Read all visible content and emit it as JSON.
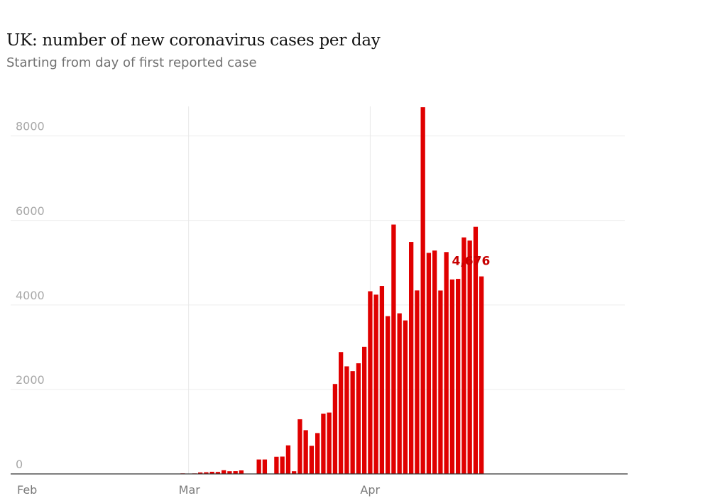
{
  "chart_data": {
    "type": "bar",
    "title": "UK: number of new coronavirus cases per day",
    "subtitle": "Starting from day of first reported case",
    "xlabel": "",
    "ylabel": "",
    "ylim": [
      0,
      8700
    ],
    "y_ticks": [
      "0",
      "2000",
      "4000",
      "6000",
      "8000"
    ],
    "x_ticks": [
      "Feb",
      "Mar",
      "Apr"
    ],
    "bar_color": "#e00000",
    "annotation_color": "#c70000",
    "grid": true,
    "start_date": "2020-01-31",
    "last_value_label": "4,676",
    "values": [
      2,
      0,
      0,
      0,
      0,
      0,
      0,
      1,
      0,
      0,
      0,
      0,
      0,
      0,
      0,
      0,
      0,
      0,
      0,
      0,
      0,
      0,
      0,
      0,
      0,
      0,
      0,
      0,
      0,
      13,
      4,
      12,
      35,
      40,
      51,
      47,
      87,
      64,
      66,
      83,
      0,
      0,
      342,
      342,
      0,
      407,
      411,
      676,
      64,
      1294,
      1035,
      665,
      967,
      1427,
      1452,
      2129,
      2885,
      2546,
      2433,
      2619,
      3009,
      4324,
      4244,
      4450,
      3735,
      5903,
      3802,
      3634,
      5491,
      4344,
      8681,
      5233,
      5288,
      4342,
      5252,
      4603,
      4617,
      5599,
      5525,
      5850,
      4676
    ]
  }
}
